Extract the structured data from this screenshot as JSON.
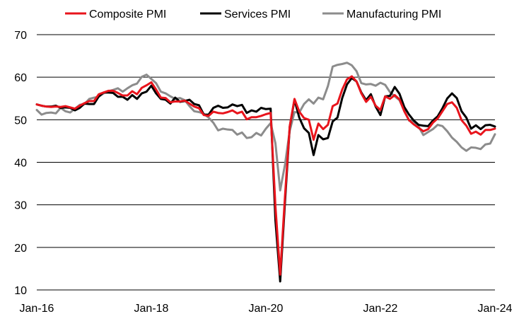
{
  "chart_data": {
    "type": "line",
    "title": "",
    "xlabel": "",
    "ylabel": "",
    "ylim": [
      10,
      70
    ],
    "yticks": [
      10,
      20,
      30,
      40,
      50,
      60,
      70
    ],
    "x_start": "Jan-16",
    "x_end": "Jan-24",
    "xtick_labels": [
      "Jan-16",
      "Jan-18",
      "Jan-20",
      "Jan-22",
      "Jan-24"
    ],
    "grid": "horizontal",
    "legend_position": "top",
    "series": [
      {
        "name": "Composite PMI",
        "color": "#e8141c",
        "values": [
          53.6,
          53.3,
          53.1,
          53.0,
          53.1,
          53.0,
          53.2,
          52.9,
          52.6,
          53.3,
          53.9,
          54.4,
          54.4,
          56.0,
          56.4,
          56.8,
          56.8,
          56.3,
          55.7,
          55.7,
          56.7,
          56.0,
          57.5,
          58.1,
          58.8,
          57.1,
          55.2,
          55.1,
          54.1,
          54.3,
          54.3,
          54.5,
          53.8,
          53.1,
          52.7,
          51.1,
          50.9,
          51.9,
          51.6,
          51.5,
          51.8,
          52.2,
          51.5,
          51.9,
          50.1,
          50.6,
          50.6,
          50.9,
          51.3,
          51.6,
          29.7,
          13.6,
          31.9,
          48.5,
          54.9,
          51.9,
          50.4,
          50.0,
          45.3,
          49.1,
          47.8,
          48.8,
          53.2,
          53.8,
          57.1,
          59.5,
          60.2,
          59.0,
          56.2,
          54.2,
          55.4,
          53.3,
          52.3,
          55.5,
          54.9,
          55.8,
          54.8,
          52.0,
          49.9,
          48.9,
          48.1,
          47.3,
          47.8,
          49.3,
          50.3,
          52.0,
          53.7,
          54.1,
          52.8,
          49.9,
          48.6,
          46.7,
          47.2,
          46.5,
          47.6,
          47.6,
          47.9
        ]
      },
      {
        "name": "Services PMI",
        "color": "#000000",
        "values": [
          53.6,
          53.3,
          53.1,
          53.1,
          53.3,
          52.8,
          52.9,
          52.8,
          52.2,
          52.8,
          53.8,
          53.7,
          53.7,
          55.5,
          56.4,
          56.4,
          56.3,
          55.4,
          55.4,
          54.7,
          55.8,
          54.9,
          56.2,
          56.6,
          58.0,
          56.2,
          54.9,
          54.7,
          53.8,
          55.2,
          54.2,
          54.4,
          54.7,
          53.7,
          53.4,
          51.2,
          51.2,
          52.8,
          53.3,
          52.8,
          52.9,
          53.6,
          53.2,
          53.5,
          51.6,
          52.2,
          51.9,
          52.8,
          52.5,
          52.6,
          26.4,
          12.0,
          30.5,
          48.3,
          54.7,
          50.5,
          48.0,
          46.9,
          41.7,
          46.4,
          45.4,
          45.7,
          49.6,
          50.5,
          55.1,
          58.3,
          59.8,
          59.0,
          56.4,
          54.6,
          56.0,
          53.1,
          51.1,
          55.5,
          55.6,
          57.7,
          56.1,
          53.0,
          51.2,
          49.8,
          48.8,
          48.6,
          48.5,
          49.8,
          50.8,
          52.7,
          55.0,
          56.2,
          55.1,
          52.0,
          50.5,
          47.9,
          48.7,
          47.8,
          48.7,
          48.8,
          48.4
        ]
      },
      {
        "name": "Manufacturing PMI",
        "color": "#8c8c8c",
        "values": [
          52.3,
          51.2,
          51.6,
          51.7,
          51.5,
          52.8,
          52.0,
          51.7,
          52.6,
          53.5,
          53.7,
          54.9,
          55.2,
          55.4,
          56.2,
          56.7,
          57.0,
          57.4,
          56.6,
          57.4,
          58.1,
          58.5,
          60.1,
          60.6,
          59.6,
          58.6,
          56.6,
          56.2,
          55.5,
          54.9,
          55.1,
          54.6,
          53.2,
          52.0,
          51.8,
          51.4,
          50.5,
          49.3,
          47.5,
          47.9,
          47.7,
          47.6,
          46.5,
          47.0,
          45.7,
          45.9,
          46.9,
          46.3,
          47.9,
          49.2,
          44.5,
          33.4,
          39.4,
          47.4,
          51.8,
          51.7,
          53.7,
          54.8,
          53.8,
          55.2,
          54.8,
          57.9,
          62.5,
          62.9,
          63.1,
          63.4,
          62.8,
          61.4,
          58.6,
          58.3,
          58.4,
          58.0,
          58.7,
          58.2,
          56.5,
          55.5,
          54.6,
          52.1,
          49.8,
          49.6,
          48.4,
          46.4,
          47.1,
          47.8,
          48.8,
          48.5,
          47.3,
          45.8,
          44.8,
          43.5,
          42.7,
          43.5,
          43.4,
          43.1,
          44.2,
          44.4,
          46.6
        ]
      }
    ]
  }
}
